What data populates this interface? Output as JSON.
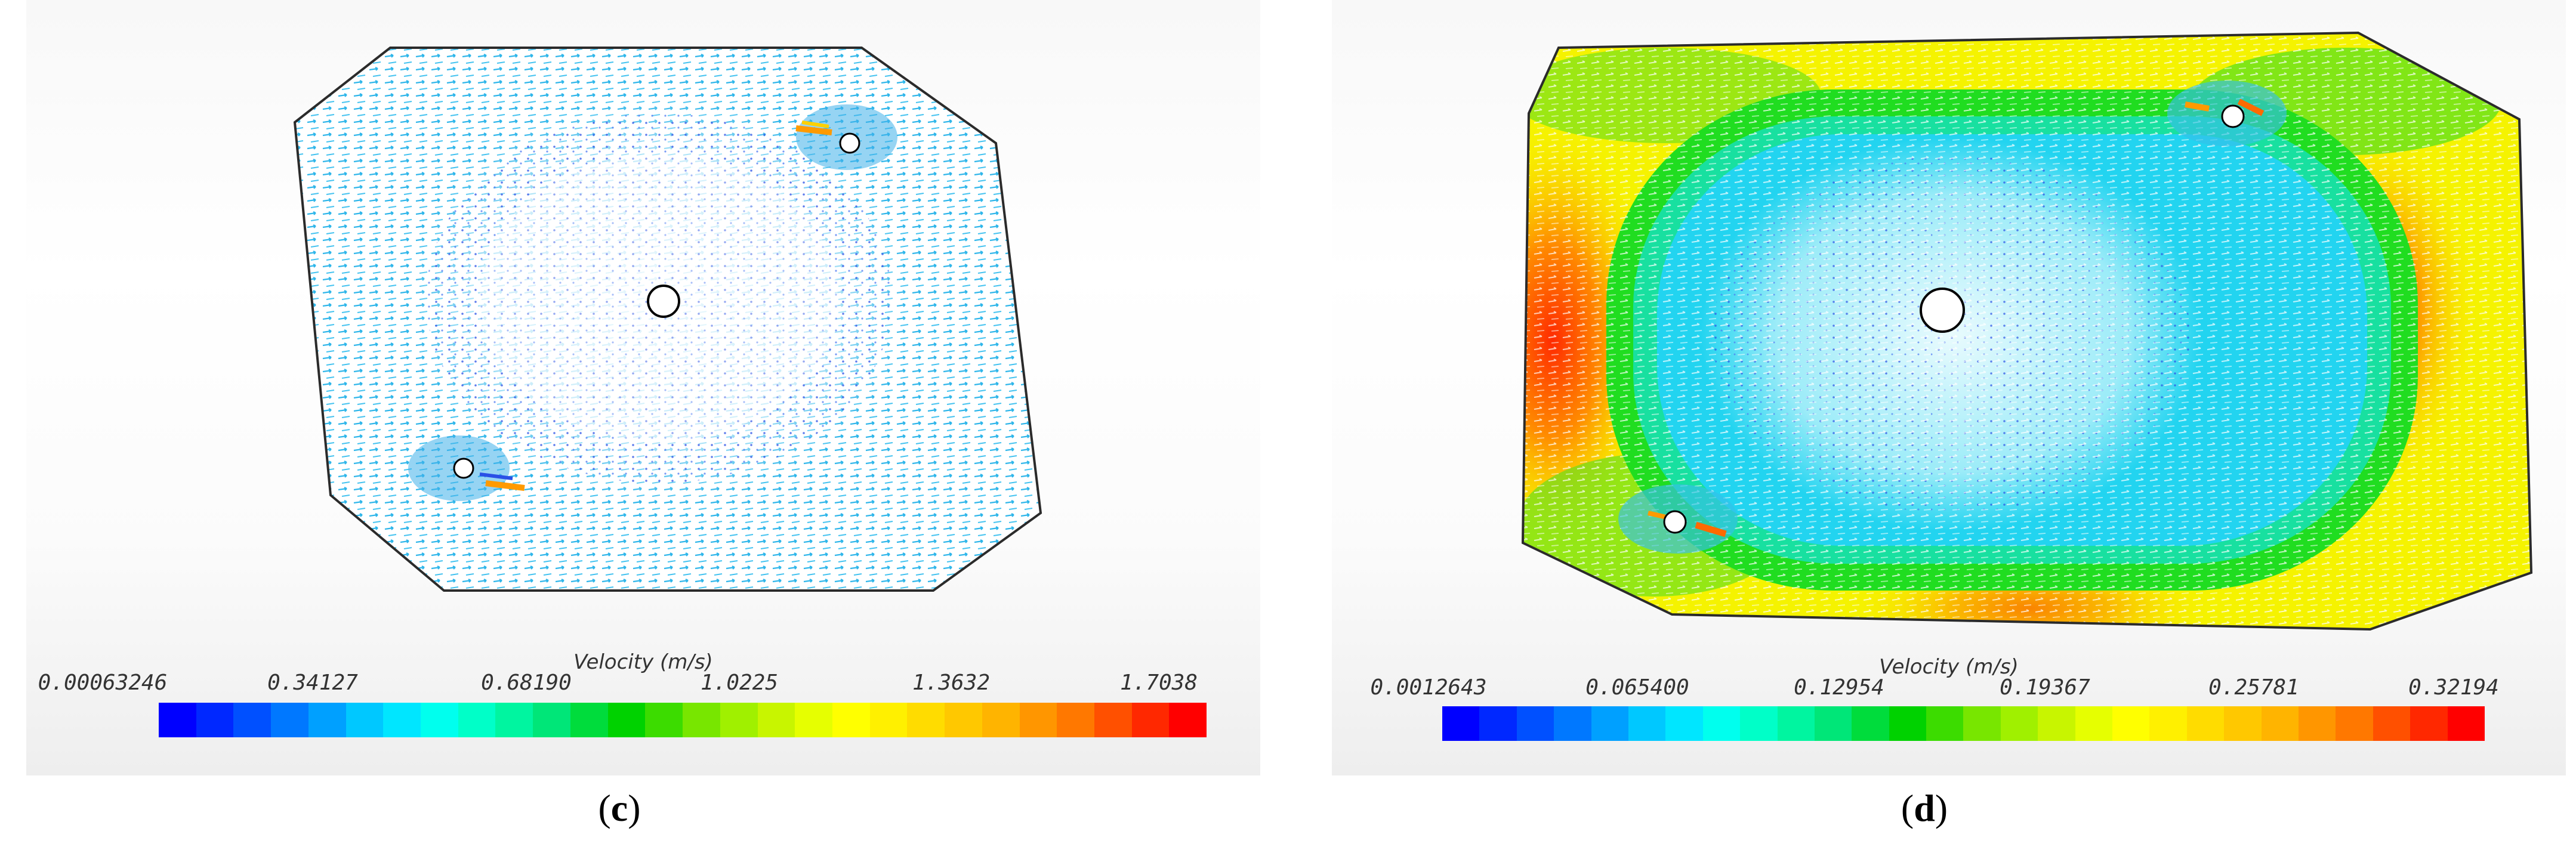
{
  "colors": {
    "scale": [
      "#0000ff",
      "#0028ff",
      "#0050ff",
      "#0078ff",
      "#00a0ff",
      "#00c8ff",
      "#00e6ff",
      "#00ffee",
      "#00ffc8",
      "#00f5a0",
      "#00e678",
      "#00dc3c",
      "#00d200",
      "#3cdc00",
      "#78e600",
      "#a0f000",
      "#c8f500",
      "#e6ff00",
      "#ffff00",
      "#fff000",
      "#ffdc00",
      "#ffc800",
      "#ffb400",
      "#ff9600",
      "#ff7800",
      "#ff5000",
      "#ff2800",
      "#ff0000"
    ],
    "outline": "#2b2b2b"
  },
  "panels": [
    {
      "id": "c",
      "caption_open": "(",
      "caption_letter": "c",
      "caption_close": ")",
      "legend_title": "Velocity (m/s)",
      "ticks": [
        "0.00063246",
        "0.34127",
        "0.68190",
        "1.0225",
        "1.3632",
        "1.7038"
      ]
    },
    {
      "id": "d",
      "caption_open": "(",
      "caption_letter": "d",
      "caption_close": ")",
      "legend_title": "Velocity (m/s)",
      "ticks": [
        "0.0012643",
        "0.065400",
        "0.12954",
        "0.19367",
        "0.25781",
        "0.32194"
      ]
    }
  ]
}
